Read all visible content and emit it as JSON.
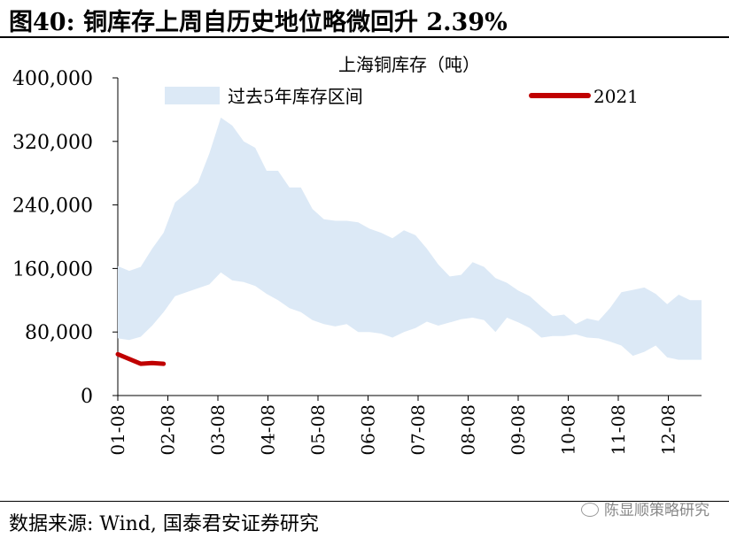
{
  "figure_title": "图40: 铜库存上周自历史地位略微回升 2.39%",
  "source": "数据来源: Wind, 国泰君安证券研究",
  "watermark": "陈显顺策略研究",
  "chart_data": {
    "type": "area",
    "title": "上海铜库存（吨）",
    "xlabel": "",
    "ylabel": "",
    "ylim": [
      0,
      400000
    ],
    "yticks": [
      "0",
      "80,000",
      "160,000",
      "240,000",
      "320,000",
      "400,000"
    ],
    "ytick_values": [
      0,
      80000,
      160000,
      240000,
      320000,
      400000
    ],
    "xticks": [
      "01-08",
      "02-08",
      "03-08",
      "04-08",
      "05-08",
      "06-08",
      "07-08",
      "08-08",
      "09-08",
      "10-08",
      "11-08",
      "12-08"
    ],
    "xlim": [
      1,
      52
    ],
    "grid": false,
    "legend": "top",
    "series": [
      {
        "name": "过去5年库存区间",
        "kind": "band",
        "color": "#dce9f6",
        "week": [
          1,
          2,
          3,
          4,
          5,
          6,
          7,
          8,
          9,
          10,
          11,
          12,
          13,
          14,
          15,
          16,
          17,
          18,
          19,
          20,
          21,
          22,
          23,
          24,
          25,
          26,
          27,
          28,
          29,
          30,
          31,
          32,
          33,
          34,
          35,
          36,
          37,
          38,
          39,
          40,
          41,
          42,
          43,
          44,
          45,
          46,
          47,
          48,
          49,
          50,
          51,
          52
        ],
        "lower": [
          72000,
          70000,
          74000,
          88000,
          105000,
          125000,
          130000,
          135000,
          140000,
          155000,
          145000,
          143000,
          138000,
          128000,
          120000,
          110000,
          105000,
          95000,
          90000,
          87000,
          90000,
          80000,
          80000,
          78000,
          73000,
          80000,
          85000,
          93000,
          88000,
          92000,
          96000,
          98000,
          95000,
          80000,
          98000,
          92000,
          85000,
          73000,
          75000,
          75000,
          77000,
          73000,
          72000,
          68000,
          63000,
          50000,
          55000,
          63000,
          48000,
          45000,
          45000,
          45000
        ],
        "upper": [
          163000,
          157000,
          162000,
          185000,
          205000,
          243000,
          255000,
          268000,
          305000,
          350000,
          340000,
          320000,
          312000,
          283000,
          283000,
          262000,
          262000,
          235000,
          222000,
          220000,
          220000,
          218000,
          210000,
          205000,
          198000,
          208000,
          202000,
          185000,
          165000,
          150000,
          152000,
          168000,
          162000,
          148000,
          142000,
          132000,
          125000,
          112000,
          100000,
          102000,
          90000,
          97000,
          94000,
          110000,
          130000,
          133000,
          136000,
          128000,
          115000,
          127000,
          120000,
          120000
        ]
      },
      {
        "name": "2021",
        "kind": "line",
        "color": "#c00000",
        "week": [
          1,
          2,
          3,
          4,
          5
        ],
        "values": [
          52000,
          46000,
          40000,
          41000,
          40000
        ]
      }
    ]
  }
}
